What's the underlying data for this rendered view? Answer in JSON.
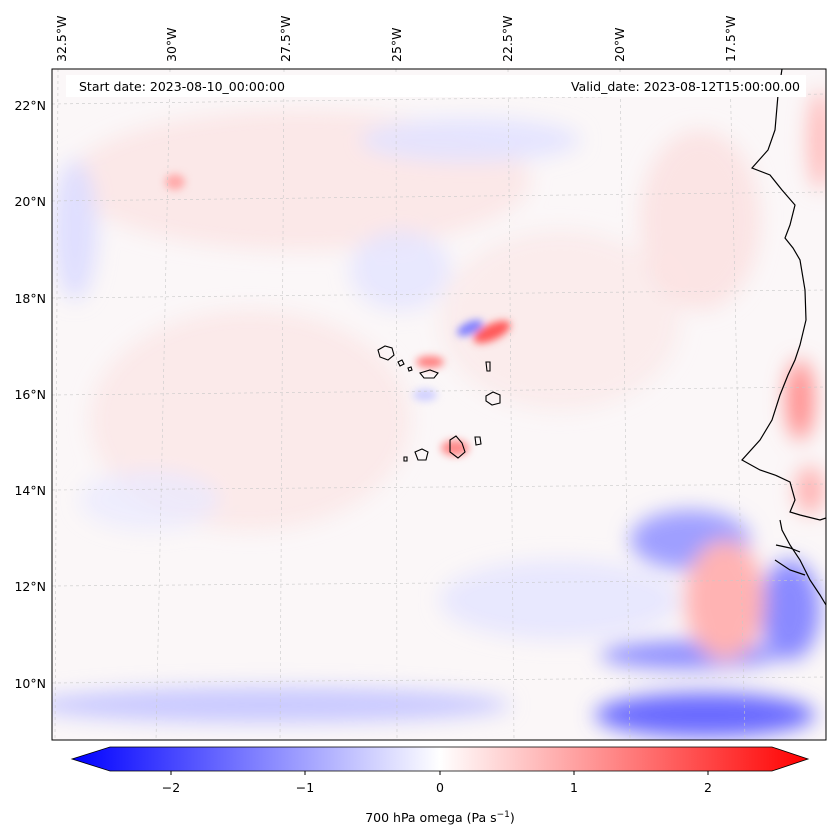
{
  "header": {
    "start_date": "Start date: 2023-08-10_00:00:00",
    "valid_date": "Valid_date: 2023-08-12T15:00:00.00"
  },
  "map": {
    "variable": "700 hPa omega",
    "lon_labels": [
      "32.5°W",
      "30°W",
      "27.5°W",
      "25°W",
      "22.5°W",
      "20°W",
      "17.5°W"
    ],
    "lat_labels": [
      "22°N",
      "20°N",
      "18°N",
      "16°N",
      "14°N",
      "12°N",
      "10°N"
    ],
    "extent": {
      "lon_min": -32.7,
      "lon_max": -15.7,
      "lat_min": 8.9,
      "lat_max": 22.8
    },
    "colormap": "bwr",
    "colors": {
      "negative": "#0000ff",
      "zero": "#ffffff",
      "positive": "#ff0000",
      "coastline": "#000000",
      "gridline": "#b0b0b0"
    }
  },
  "colorbar": {
    "tick_labels": [
      "−2",
      "−1",
      "0",
      "1",
      "2"
    ],
    "label_prefix": "700 hPa omega (Pa s",
    "label_exp": "−1",
    "label_suffix": ")",
    "range": [
      -2.6,
      2.6
    ]
  }
}
